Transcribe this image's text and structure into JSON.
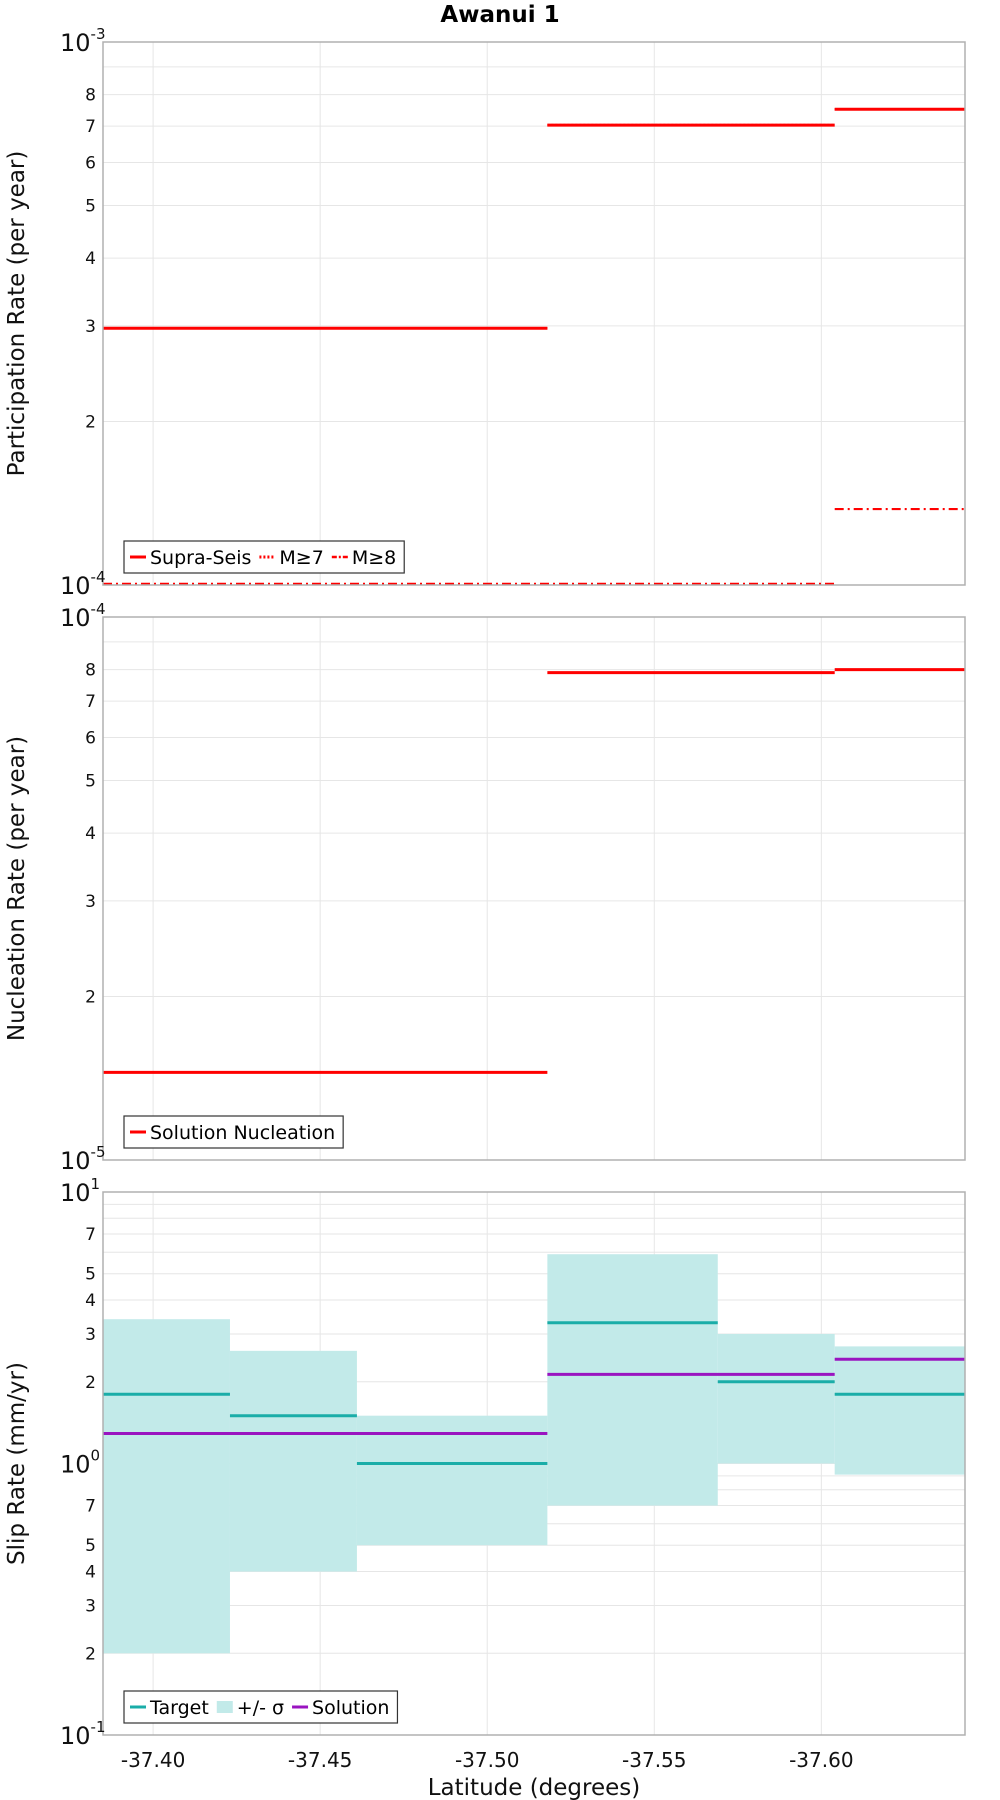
{
  "title": "Awanui 1",
  "x_axis": {
    "label": "Latitude (degrees)",
    "range": [
      -37.385,
      -37.643
    ],
    "ticks": [
      -37.4,
      -37.45,
      -37.5,
      -37.55,
      -37.6
    ],
    "tick_labels": [
      "-37.40",
      "-37.45",
      "-37.50",
      "-37.55",
      "-37.60"
    ]
  },
  "colors": {
    "red": "#ff0000",
    "teal": "#1aada8",
    "teal_band": "#c2eae9",
    "purple": "#9a14c0",
    "grid": "#e6e6e6",
    "frame": "#b0b0b0"
  },
  "chart_data": [
    {
      "type": "line",
      "id": "participation",
      "ylabel": "Participation Rate (per year)",
      "yscale": "log",
      "ylim": [
        0.0001,
        0.001
      ],
      "y_decade_labels": [
        {
          "base": "10",
          "exp": "-4",
          "value": 0.0001
        },
        {
          "base": "10",
          "exp": "-3",
          "value": 0.001
        }
      ],
      "y_minor_labels": [
        {
          "label": "2",
          "value": 0.0002
        },
        {
          "label": "3",
          "value": 0.0003
        },
        {
          "label": "4",
          "value": 0.0004
        },
        {
          "label": "5",
          "value": 0.0005
        },
        {
          "label": "6",
          "value": 0.0006
        },
        {
          "label": "7",
          "value": 0.0007
        },
        {
          "label": "8",
          "value": 0.0008
        }
      ],
      "legend": [
        {
          "name": "Supra-Seis",
          "style": "solid",
          "color": "#ff0000"
        },
        {
          "name": "M≥7",
          "style": "dotted",
          "color": "#ff0000"
        },
        {
          "name": "M≥8",
          "style": "dashdot",
          "color": "#ff0000"
        }
      ],
      "series": [
        {
          "name": "Supra-Seis",
          "style": "solid",
          "color": "#ff0000",
          "segments": [
            {
              "x": [
                -37.385,
                -37.518
              ],
              "y": 0.000297
            },
            {
              "x": [
                -37.518,
                -37.604
              ],
              "y": 0.000703
            },
            {
              "x": [
                -37.604,
                -37.643
              ],
              "y": 0.000752
            }
          ]
        },
        {
          "name": "M≥7",
          "style": "dotted",
          "color": "#ff0000",
          "segments": [
            {
              "x": [
                -37.385,
                -37.518
              ],
              "y": 0.000297
            },
            {
              "x": [
                -37.518,
                -37.604
              ],
              "y": 0.000703
            },
            {
              "x": [
                -37.604,
                -37.643
              ],
              "y": 0.000752
            }
          ]
        },
        {
          "name": "M≥8",
          "style": "dashdot",
          "color": "#ff0000",
          "segments": [
            {
              "x": [
                -37.385,
                -37.604
              ],
              "y": 0.0001005
            },
            {
              "x": [
                -37.604,
                -37.643
              ],
              "y": 0.000138
            }
          ]
        }
      ]
    },
    {
      "type": "line",
      "id": "nucleation",
      "ylabel": "Nucleation Rate (per year)",
      "yscale": "log",
      "ylim": [
        1e-05,
        0.0001
      ],
      "y_decade_labels": [
        {
          "base": "10",
          "exp": "-5",
          "value": 1e-05
        },
        {
          "base": "10",
          "exp": "-4",
          "value": 0.0001
        }
      ],
      "y_minor_labels": [
        {
          "label": "2",
          "value": 2e-05
        },
        {
          "label": "3",
          "value": 3e-05
        },
        {
          "label": "4",
          "value": 4e-05
        },
        {
          "label": "5",
          "value": 5e-05
        },
        {
          "label": "6",
          "value": 6e-05
        },
        {
          "label": "7",
          "value": 7e-05
        },
        {
          "label": "8",
          "value": 8e-05
        }
      ],
      "legend": [
        {
          "name": "Solution Nucleation",
          "style": "solid",
          "color": "#ff0000"
        }
      ],
      "series": [
        {
          "name": "Solution Nucleation",
          "style": "solid",
          "color": "#ff0000",
          "segments": [
            {
              "x": [
                -37.385,
                -37.518
              ],
              "y": 1.45e-05
            },
            {
              "x": [
                -37.518,
                -37.604
              ],
              "y": 7.9e-05
            },
            {
              "x": [
                -37.604,
                -37.643
              ],
              "y": 8e-05
            }
          ]
        }
      ]
    },
    {
      "type": "line",
      "id": "slip",
      "ylabel": "Slip Rate (mm/yr)",
      "yscale": "log",
      "ylim": [
        0.1,
        10
      ],
      "y_decade_labels": [
        {
          "base": "10",
          "exp": "-1",
          "value": 0.1
        },
        {
          "base": "10",
          "exp": "0",
          "value": 1
        },
        {
          "base": "10",
          "exp": "1",
          "value": 10
        }
      ],
      "y_minor_labels": [
        {
          "label": "2",
          "value": 0.2
        },
        {
          "label": "3",
          "value": 0.3
        },
        {
          "label": "4",
          "value": 0.4
        },
        {
          "label": "5",
          "value": 0.5
        },
        {
          "label": "7",
          "value": 0.7
        },
        {
          "label": "2",
          "value": 2
        },
        {
          "label": "3",
          "value": 3
        },
        {
          "label": "4",
          "value": 4
        },
        {
          "label": "5",
          "value": 5
        },
        {
          "label": "7",
          "value": 7
        }
      ],
      "legend": [
        {
          "name": "Target",
          "style": "solid",
          "color": "#1aada8"
        },
        {
          "name": "+/- σ",
          "style": "band",
          "color": "#c2eae9"
        },
        {
          "name": "Solution",
          "style": "solid",
          "color": "#9a14c0"
        }
      ],
      "bands": [
        {
          "x": [
            -37.385,
            -37.423
          ],
          "low": 0.2,
          "high": 3.4
        },
        {
          "x": [
            -37.423,
            -37.461
          ],
          "low": 0.4,
          "high": 2.6
        },
        {
          "x": [
            -37.461,
            -37.518
          ],
          "low": 0.5,
          "high": 1.5
        },
        {
          "x": [
            -37.518,
            -37.569
          ],
          "low": 0.7,
          "high": 5.9
        },
        {
          "x": [
            -37.569,
            -37.604
          ],
          "low": 1.0,
          "high": 3.0
        },
        {
          "x": [
            -37.604,
            -37.643
          ],
          "low": 0.91,
          "high": 2.7
        }
      ],
      "series": [
        {
          "name": "Target",
          "style": "solid",
          "color": "#1aada8",
          "segments": [
            {
              "x": [
                -37.385,
                -37.423
              ],
              "y": 1.8
            },
            {
              "x": [
                -37.423,
                -37.461
              ],
              "y": 1.5
            },
            {
              "x": [
                -37.461,
                -37.518
              ],
              "y": 1.0
            },
            {
              "x": [
                -37.518,
                -37.569
              ],
              "y": 3.3
            },
            {
              "x": [
                -37.569,
                -37.604
              ],
              "y": 2.0
            },
            {
              "x": [
                -37.604,
                -37.643
              ],
              "y": 1.8
            }
          ]
        },
        {
          "name": "Solution",
          "style": "solid",
          "color": "#9a14c0",
          "segments": [
            {
              "x": [
                -37.385,
                -37.518
              ],
              "y": 1.29
            },
            {
              "x": [
                -37.518,
                -37.604
              ],
              "y": 2.13
            },
            {
              "x": [
                -37.604,
                -37.643
              ],
              "y": 2.42
            }
          ]
        }
      ]
    }
  ]
}
